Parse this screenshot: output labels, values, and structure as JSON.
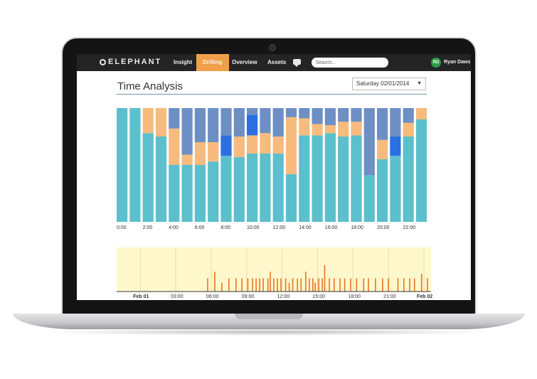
{
  "nav": {
    "logo": "ELEPHANT",
    "items": [
      {
        "label": "Insight",
        "active": false
      },
      {
        "label": "Drilling",
        "active": true
      },
      {
        "label": "Overview",
        "active": false
      },
      {
        "label": "Assets",
        "active": false
      }
    ],
    "search_placeholder": "Search...",
    "user_initials": "RD",
    "user_name": "Ryan Daws"
  },
  "page": {
    "title": "Time Analysis",
    "date_value": "Saturday 02/01/2014"
  },
  "colors": {
    "teal": "#5bbfcc",
    "orange": "#f7bb7e",
    "slate": "#6e8fc4",
    "blue": "#2b6fe0",
    "spike": "#e8732a",
    "timeline_bg": "#fff8cc",
    "accent": "#f0a04b"
  },
  "chart_data": [
    {
      "type": "bar",
      "stacked": true,
      "normalized": true,
      "x": [
        "0:00",
        "1:00",
        "2:00",
        "3:00",
        "4:00",
        "5:00",
        "6:00",
        "7:00",
        "8:00",
        "9:00",
        "10:00",
        "11:00",
        "12:00",
        "13:00",
        "14:00",
        "15:00",
        "16:00",
        "17:00",
        "18:00",
        "19:00",
        "20:00",
        "21:00",
        "22:00",
        "23:00"
      ],
      "tick_labels": [
        "0:00",
        "2:00",
        "4:00",
        "6:00",
        "8:00",
        "10:00",
        "12:00",
        "14:00",
        "16:00",
        "18:00",
        "20:00",
        "22:00"
      ],
      "ylim": [
        0,
        1
      ],
      "series": [
        {
          "color": "#5bbfcc",
          "values": [
            1.0,
            1.0,
            0.78,
            0.75,
            0.5,
            0.5,
            0.5,
            0.53,
            0.58,
            0.57,
            0.6,
            0.6,
            0.6,
            0.42,
            0.76,
            0.76,
            0.78,
            0.75,
            0.76,
            0.41,
            0.55,
            0.58,
            0.75,
            0.9
          ]
        },
        {
          "color": "#f7bb7e",
          "values": [
            0.0,
            0.0,
            0.22,
            0.25,
            0.32,
            0.09,
            0.2,
            0.17,
            0.0,
            0.18,
            0.16,
            0.18,
            0.15,
            0.5,
            0.15,
            0.1,
            0.07,
            0.13,
            0.12,
            0.0,
            0.17,
            0.0,
            0.12,
            0.1
          ]
        },
        {
          "color": "#2b6fe0",
          "values": [
            0,
            0,
            0,
            0,
            0,
            0,
            0,
            0,
            0.18,
            0,
            0.18,
            0,
            0,
            0,
            0,
            0,
            0,
            0,
            0,
            0,
            0,
            0.17,
            0,
            0
          ]
        },
        {
          "color": "#6e8fc4",
          "values": [
            0.0,
            0.0,
            0.0,
            0.0,
            0.18,
            0.41,
            0.3,
            0.3,
            0.24,
            0.25,
            0.06,
            0.22,
            0.25,
            0.08,
            0.09,
            0.14,
            0.15,
            0.12,
            0.12,
            0.59,
            0.28,
            0.25,
            0.13,
            0.0
          ]
        }
      ]
    },
    {
      "type": "bar",
      "x_tick_labels": [
        "Feb 01",
        "03:00",
        "06:00",
        "09:00",
        "12:00",
        "15:00",
        "18:00",
        "21:00",
        "Feb 02"
      ],
      "bold_tick_labels": [
        "Feb 01",
        "Feb 02"
      ],
      "xlim": [
        -2,
        24.6
      ],
      "ylim": [
        0,
        1
      ],
      "spikes": [
        {
          "x": 5.7,
          "h": 0.3
        },
        {
          "x": 6.3,
          "h": 0.45
        },
        {
          "x": 6.9,
          "h": 0.2
        },
        {
          "x": 7.5,
          "h": 0.3
        },
        {
          "x": 8.1,
          "h": 0.3
        },
        {
          "x": 8.6,
          "h": 0.3
        },
        {
          "x": 9.1,
          "h": 0.3
        },
        {
          "x": 9.5,
          "h": 0.3
        },
        {
          "x": 9.8,
          "h": 0.3
        },
        {
          "x": 10.1,
          "h": 0.3
        },
        {
          "x": 10.4,
          "h": 0.3
        },
        {
          "x": 10.8,
          "h": 0.3
        },
        {
          "x": 11.0,
          "h": 0.45
        },
        {
          "x": 11.3,
          "h": 0.3
        },
        {
          "x": 11.6,
          "h": 0.3
        },
        {
          "x": 11.9,
          "h": 0.3
        },
        {
          "x": 12.3,
          "h": 0.3
        },
        {
          "x": 12.6,
          "h": 0.2
        },
        {
          "x": 12.9,
          "h": 0.3
        },
        {
          "x": 13.3,
          "h": 0.3
        },
        {
          "x": 13.6,
          "h": 0.3
        },
        {
          "x": 14.0,
          "h": 0.45
        },
        {
          "x": 14.3,
          "h": 0.3
        },
        {
          "x": 14.6,
          "h": 0.3
        },
        {
          "x": 14.8,
          "h": 0.2
        },
        {
          "x": 15.1,
          "h": 0.3
        },
        {
          "x": 15.4,
          "h": 0.3
        },
        {
          "x": 15.6,
          "h": 0.6
        },
        {
          "x": 16.0,
          "h": 0.3
        },
        {
          "x": 16.4,
          "h": 0.3
        },
        {
          "x": 16.9,
          "h": 0.3
        },
        {
          "x": 17.3,
          "h": 0.3
        },
        {
          "x": 17.8,
          "h": 0.3
        },
        {
          "x": 18.3,
          "h": 0.3
        },
        {
          "x": 18.9,
          "h": 0.3
        },
        {
          "x": 19.3,
          "h": 0.3
        },
        {
          "x": 19.9,
          "h": 0.3
        },
        {
          "x": 20.5,
          "h": 0.3
        },
        {
          "x": 21.0,
          "h": 0.3
        },
        {
          "x": 21.8,
          "h": 0.3
        },
        {
          "x": 22.3,
          "h": 0.3
        },
        {
          "x": 22.8,
          "h": 0.3
        },
        {
          "x": 23.2,
          "h": 0.3
        },
        {
          "x": 23.8,
          "h": 0.4
        },
        {
          "x": 24.3,
          "h": 0.3
        }
      ]
    }
  ]
}
